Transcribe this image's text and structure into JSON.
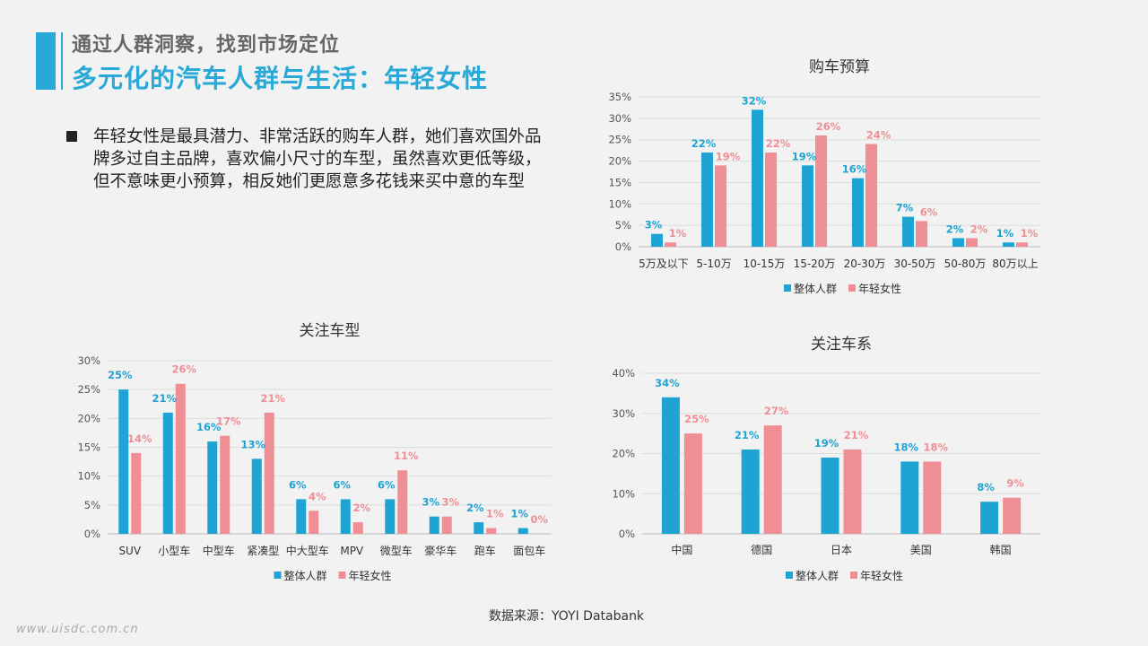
{
  "header": {
    "subtitle": "通过人群洞察，找到市场定位",
    "title": "多元化的汽车人群与生活：年轻女性"
  },
  "body_text": "年轻女性是最具潜力、非常活跃的购车人群，她们喜欢国外品牌多过自主品牌，喜欢偏小尺寸的车型，虽然喜欢更低等级，但不意味更小预算，相反她们更愿意多花钱来买中意的车型",
  "source": "数据来源：YOYI  Databank",
  "watermark": "www.uisdc.com.cn",
  "colors": {
    "series1": "#1ea3d3",
    "series2": "#ef8f95",
    "accent": "#29a9d8"
  },
  "chart_data": [
    {
      "id": "budget",
      "type": "bar",
      "title": "购车预算",
      "categories": [
        "5万及以下",
        "5-10万",
        "10-15万",
        "15-20万",
        "20-30万",
        "30-50万",
        "50-80万",
        "80万以上"
      ],
      "series": [
        {
          "name": "整体人群",
          "values": [
            3,
            22,
            32,
            19,
            16,
            7,
            2,
            1
          ]
        },
        {
          "name": "年轻女性",
          "values": [
            1,
            19,
            22,
            26,
            24,
            6,
            2,
            1
          ]
        }
      ],
      "ylim": [
        0,
        35
      ],
      "yticks": [
        "0%",
        "5%",
        "10%",
        "15%",
        "20%",
        "25%",
        "30%",
        "35%"
      ],
      "grid": true,
      "legend": "bottom"
    },
    {
      "id": "model",
      "type": "bar",
      "title": "关注车型",
      "categories": [
        "SUV",
        "小型车",
        "中型车",
        "紧凑型",
        "中大型车",
        "MPV",
        "微型车",
        "豪华车",
        "跑车",
        "面包车"
      ],
      "series": [
        {
          "name": "整体人群",
          "values": [
            25,
            21,
            16,
            13,
            6,
            6,
            6,
            3,
            2,
            1
          ]
        },
        {
          "name": "年轻女性",
          "values": [
            14,
            26,
            17,
            21,
            4,
            2,
            11,
            3,
            1,
            0
          ]
        }
      ],
      "ylim": [
        0,
        30
      ],
      "yticks": [
        "0%",
        "5%",
        "10%",
        "15%",
        "20%",
        "25%",
        "30%"
      ],
      "grid": true,
      "legend": "bottom"
    },
    {
      "id": "origin",
      "type": "bar",
      "title": "关注车系",
      "categories": [
        "中国",
        "德国",
        "日本",
        "美国",
        "韩国"
      ],
      "series": [
        {
          "name": "整体人群",
          "values": [
            34,
            21,
            19,
            18,
            8
          ]
        },
        {
          "name": "年轻女性",
          "values": [
            25,
            27,
            21,
            18,
            9
          ]
        }
      ],
      "ylim": [
        0,
        40
      ],
      "yticks": [
        "0%",
        "10%",
        "20%",
        "30%",
        "40%"
      ],
      "grid": true,
      "legend": "bottom"
    }
  ]
}
